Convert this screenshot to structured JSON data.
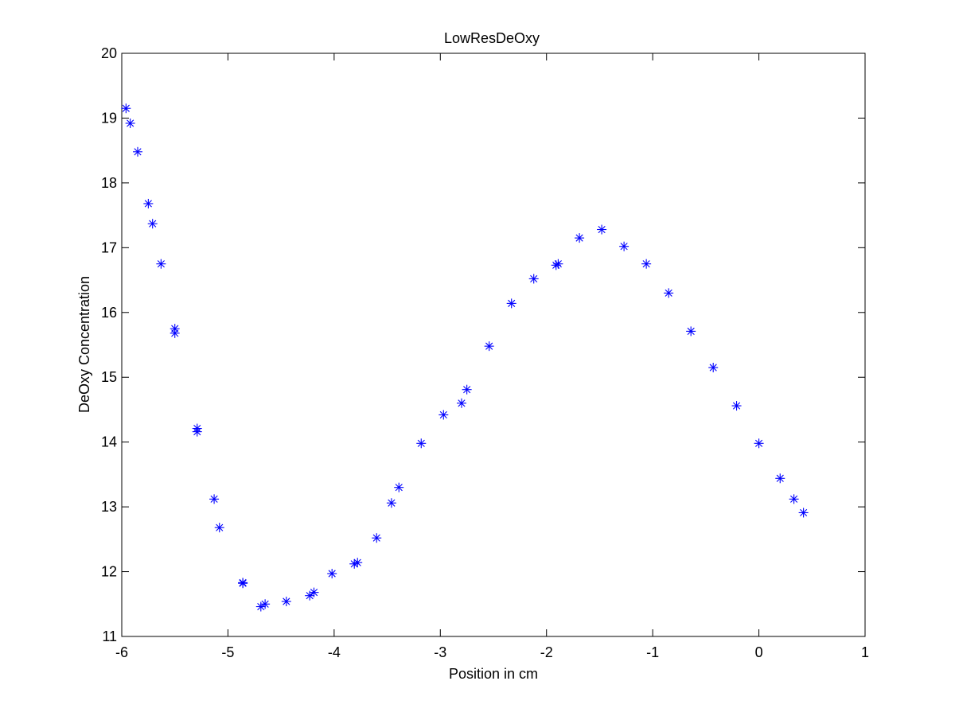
{
  "chart_data": {
    "type": "scatter",
    "title": "LowResDeOxy",
    "xlabel": "Position in cm",
    "ylabel": "DeOxy Concentration",
    "xlim": [
      -6,
      1
    ],
    "ylim": [
      11,
      20
    ],
    "xticks": [
      -6,
      -5,
      -4,
      -3,
      -2,
      -1,
      0,
      1
    ],
    "yticks": [
      11,
      12,
      13,
      14,
      15,
      16,
      17,
      18,
      19,
      20
    ],
    "grid": false,
    "legend": "none",
    "marker": "asterisk",
    "color": "#0000FF",
    "series": [
      {
        "x": [
          -5.96,
          -5.92,
          -5.85,
          -5.75,
          -5.71,
          -5.63,
          -5.5,
          -5.5,
          -5.29,
          -5.29,
          -5.13,
          -5.08,
          -4.86,
          -4.86,
          -4.69,
          -4.65,
          -4.45,
          -4.23,
          -4.19,
          -4.02,
          -3.81,
          -3.78,
          -3.6,
          -3.46,
          -3.39,
          -3.18,
          -2.97,
          -2.8,
          -2.75,
          -2.54,
          -2.33,
          -2.12,
          -1.91,
          -1.89,
          -1.69,
          -1.48,
          -1.27,
          -1.06,
          -0.85,
          -0.64,
          -0.43,
          -0.21,
          0.0,
          0.2,
          0.33,
          0.42
        ],
        "y": [
          19.15,
          18.92,
          18.48,
          17.68,
          17.37,
          16.75,
          15.75,
          15.68,
          14.21,
          14.16,
          13.12,
          12.68,
          11.83,
          11.82,
          11.46,
          11.5,
          11.54,
          11.63,
          11.68,
          11.97,
          12.12,
          12.14,
          12.52,
          13.06,
          13.3,
          13.98,
          14.42,
          14.6,
          14.81,
          15.48,
          16.14,
          16.52,
          16.73,
          16.75,
          17.15,
          17.28,
          17.02,
          16.75,
          16.3,
          15.71,
          15.15,
          14.56,
          13.98,
          13.44,
          13.12,
          12.91
        ]
      }
    ]
  }
}
